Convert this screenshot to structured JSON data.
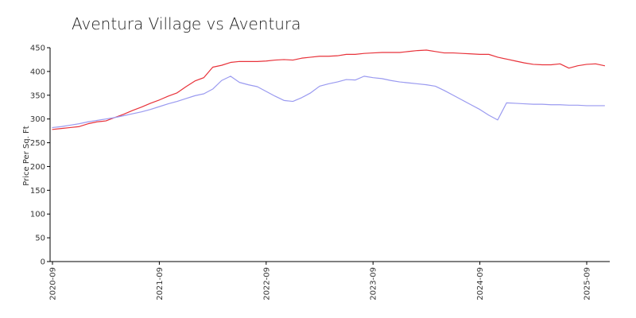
{
  "chart_data": {
    "type": "line",
    "title": "Aventura Village vs Aventura",
    "xlabel": "",
    "ylabel": "Price Per Sq. Ft",
    "ylim": [
      0,
      450
    ],
    "yticks": [
      0,
      50,
      100,
      150,
      200,
      250,
      300,
      350,
      400,
      450
    ],
    "xlim": [
      "2020-09",
      "2025-11"
    ],
    "xticks": [
      "2020-09",
      "2021-09",
      "2022-09",
      "2023-09",
      "2024-09",
      "2025-09"
    ],
    "grid": false,
    "colors": {
      "series_0": "#e8323a",
      "series_1": "#9a9af0"
    },
    "x": [
      "2020-09",
      "2020-10",
      "2020-11",
      "2020-12",
      "2021-01",
      "2021-02",
      "2021-03",
      "2021-04",
      "2021-05",
      "2021-06",
      "2021-07",
      "2021-08",
      "2021-09",
      "2021-10",
      "2021-11",
      "2021-12",
      "2022-01",
      "2022-02",
      "2022-03",
      "2022-04",
      "2022-05",
      "2022-06",
      "2022-07",
      "2022-08",
      "2022-09",
      "2022-10",
      "2022-11",
      "2022-12",
      "2023-01",
      "2023-02",
      "2023-03",
      "2023-04",
      "2023-05",
      "2023-06",
      "2023-07",
      "2023-08",
      "2023-09",
      "2023-10",
      "2023-11",
      "2023-12",
      "2024-01",
      "2024-02",
      "2024-03",
      "2024-04",
      "2024-05",
      "2024-06",
      "2024-07",
      "2024-08",
      "2024-09",
      "2024-10",
      "2024-11",
      "2024-12",
      "2025-01",
      "2025-02",
      "2025-03",
      "2025-04",
      "2025-05",
      "2025-06",
      "2025-07",
      "2025-08",
      "2025-09",
      "2025-10",
      "2025-11"
    ],
    "series": [
      {
        "values": [
          278,
          280,
          282,
          284,
          290,
          294,
          296,
          303,
          310,
          318,
          325,
          333,
          340,
          348,
          355,
          368,
          380,
          387,
          409,
          413,
          419,
          421,
          421,
          421,
          422,
          424,
          425,
          424,
          428,
          430,
          432,
          432,
          433,
          436,
          436,
          438,
          439,
          440,
          440,
          440,
          442,
          444,
          445,
          442,
          439,
          439,
          438,
          437,
          436,
          436,
          430,
          426,
          422,
          418,
          415,
          414,
          414,
          416,
          407,
          412,
          415,
          416,
          412
        ]
      },
      {
        "values": [
          282,
          284,
          287,
          290,
          294,
          297,
          300,
          303,
          307,
          311,
          315,
          320,
          326,
          332,
          337,
          343,
          349,
          353,
          363,
          381,
          390,
          377,
          372,
          368,
          358,
          348,
          339,
          337,
          345,
          355,
          369,
          374,
          378,
          383,
          382,
          390,
          387,
          385,
          381,
          378,
          376,
          374,
          372,
          369,
          360,
          350,
          340,
          330,
          320,
          308,
          298,
          334,
          333,
          332,
          331,
          331,
          330,
          330,
          329,
          329,
          328,
          328,
          328
        ]
      }
    ]
  }
}
